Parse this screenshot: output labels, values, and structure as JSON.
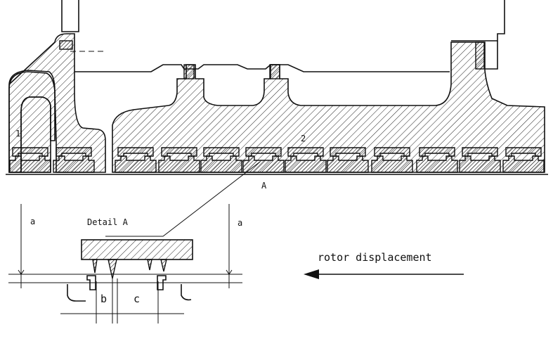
{
  "labels": {
    "seal_1": "1",
    "seal_2": "2",
    "detail_marker": "A",
    "detail_title": "Detail  A",
    "dim_a_left": "a",
    "dim_a_right": "a",
    "dim_b": "b",
    "dim_c": "c",
    "rotor_displacement": "rotor displacement"
  },
  "labyrinth_pairs": 12
}
